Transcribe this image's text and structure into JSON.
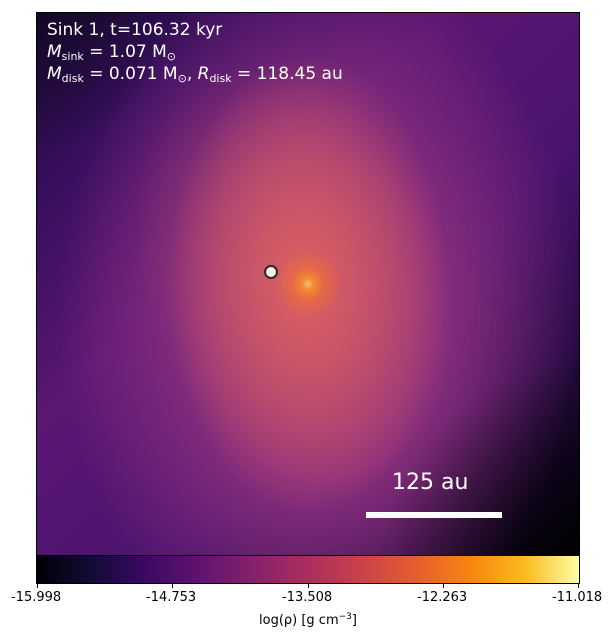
{
  "annotation": {
    "line1": "Sink 1, t=106.32 kyr",
    "m_sink_symbol": "M",
    "m_sink_sub": "sink",
    "m_sink_value": " = 1.07 M",
    "m_sink_sun_sub": "⊙",
    "m_disk_symbol": "M",
    "m_disk_sub": "disk",
    "m_disk_value": " = 0.071 M",
    "m_disk_sun_sub": "⊙",
    "r_disk_sep": ", ",
    "r_disk_symbol": "R",
    "r_disk_sub": "disk",
    "r_disk_value": " = 118.45 au"
  },
  "scale_bar": {
    "label": "125 au"
  },
  "colorbar": {
    "colormap": "inferno",
    "tick_labels": [
      "-15.998",
      "-14.753",
      "-13.508",
      "-12.263",
      "-11.018"
    ],
    "label_prefix": "log(ρ) [g cm",
    "label_exp": "−3",
    "label_suffix": "]",
    "min": -15.998,
    "max": -11.018
  }
}
